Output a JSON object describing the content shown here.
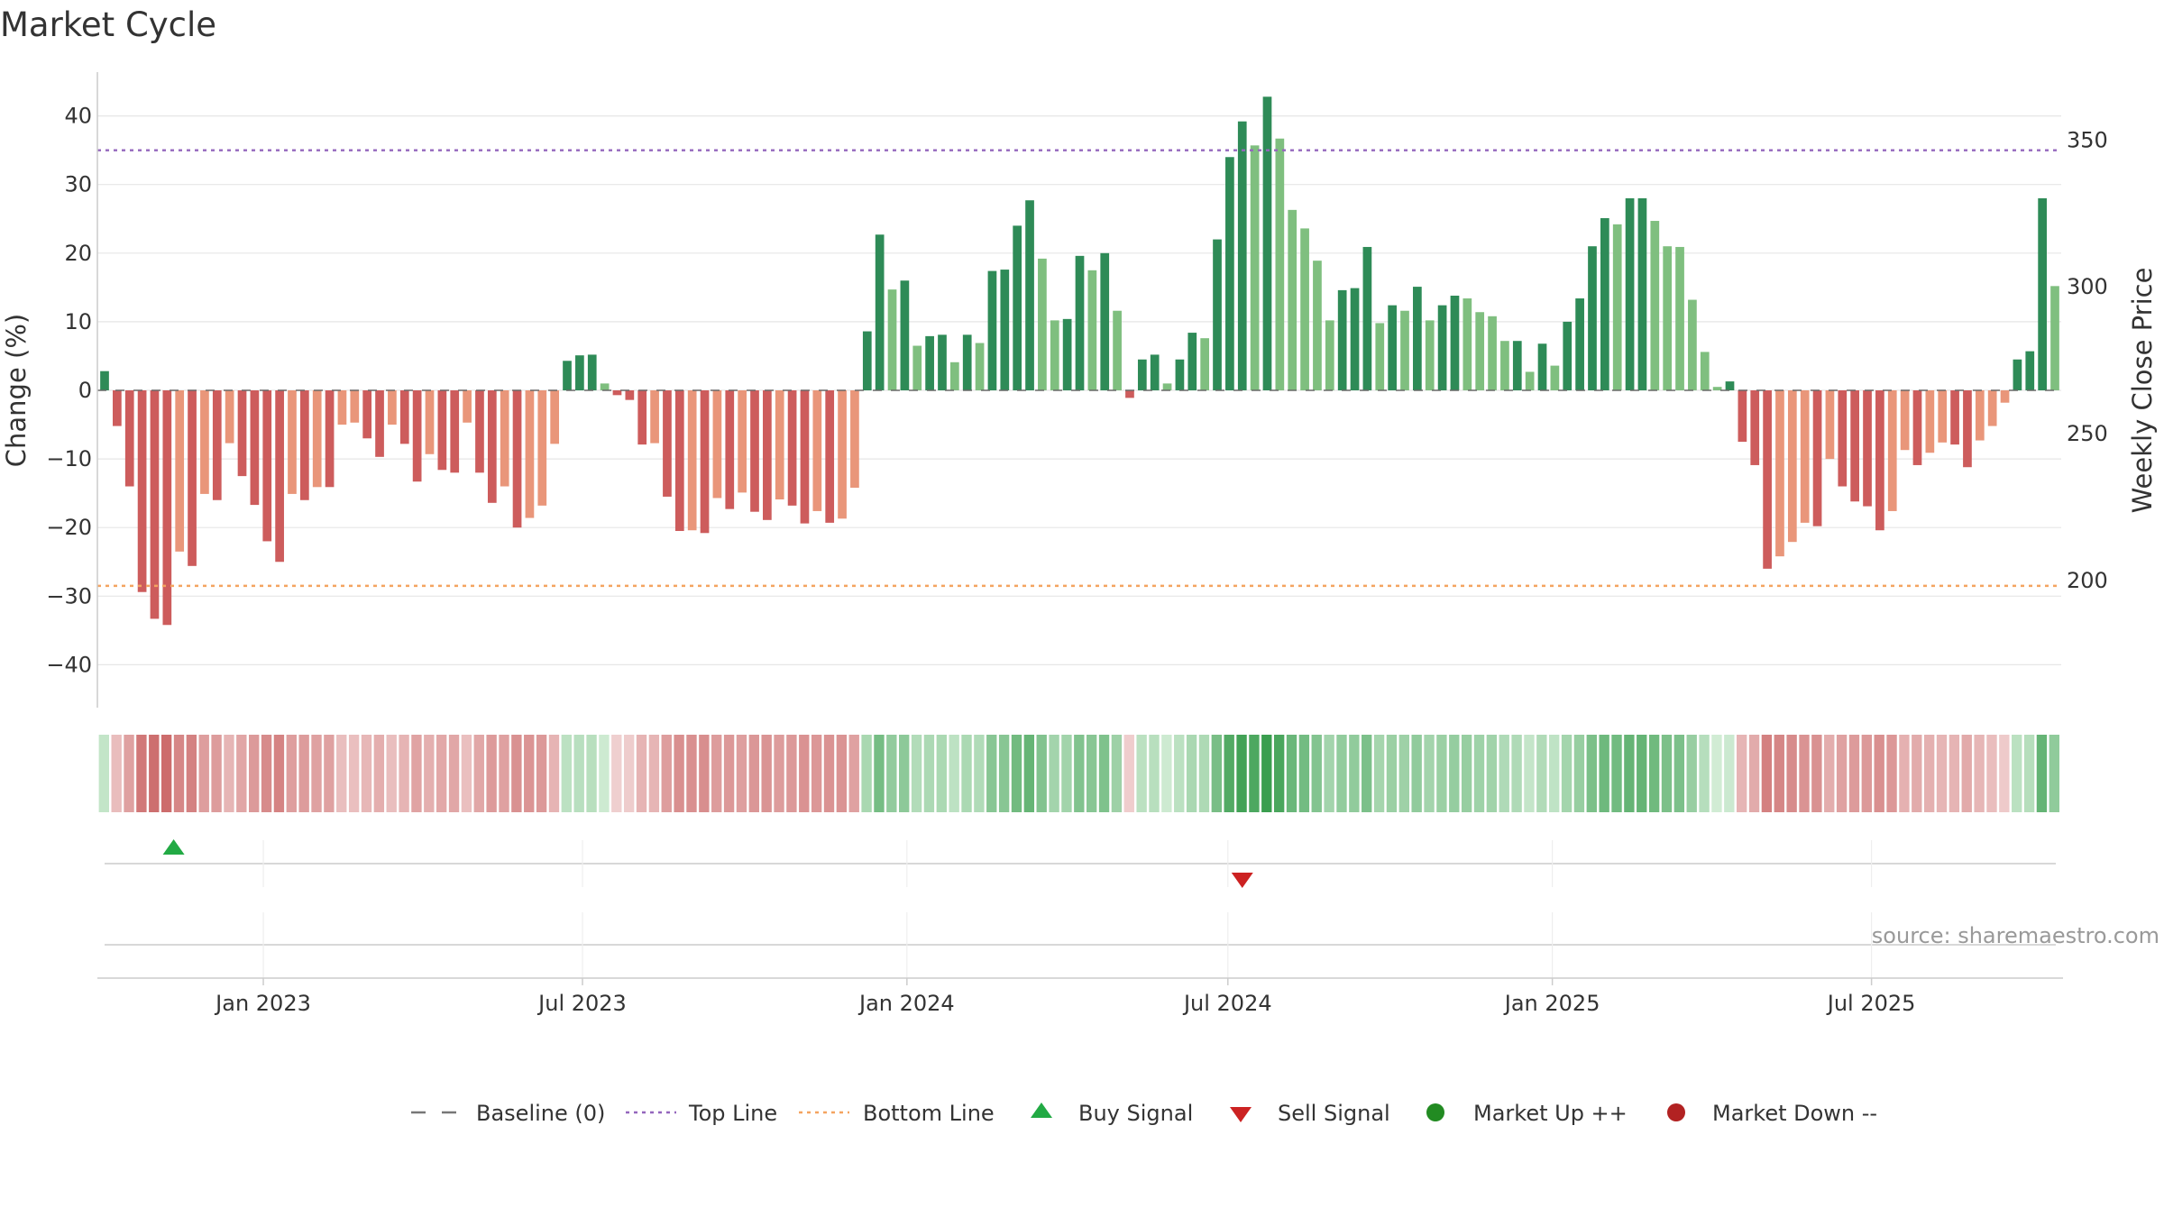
{
  "chart_data": {
    "type": "bar",
    "title": "Market Cycle",
    "ylabel": "Change (%)",
    "y2label": "Weekly Close Price",
    "ylim": [
      -46,
      46
    ],
    "y_ticks": [
      -40,
      -30,
      -20,
      -10,
      0,
      10,
      20,
      30,
      40
    ],
    "y_tick_labels": [
      "−40",
      "−30",
      "−20",
      "−10",
      "0",
      "10",
      "20",
      "30",
      "40"
    ],
    "y2lim": [
      158.5,
      376
    ],
    "y2_ticks": [
      200,
      250,
      300,
      350
    ],
    "x_start": "2022-10-03",
    "x_end": "2025-10-13",
    "x_ticks": [
      {
        "date": "2023-01-01",
        "label": "Jan 2023"
      },
      {
        "date": "2023-07-01",
        "label": "Jul 2023"
      },
      {
        "date": "2024-01-01",
        "label": "Jan 2024"
      },
      {
        "date": "2024-07-01",
        "label": "Jul 2024"
      },
      {
        "date": "2025-01-01",
        "label": "Jan 2025"
      },
      {
        "date": "2025-07-01",
        "label": "Jul 2025"
      }
    ],
    "baseline": 0,
    "top_line": 35,
    "bottom_line": -28.5,
    "values": [
      2.8,
      -5.2,
      -14,
      -29.4,
      -33.3,
      -34.2,
      -23.5,
      -25.6,
      -15.1,
      -16,
      -7.7,
      -12.5,
      -16.7,
      -22,
      -25,
      -15.1,
      -16,
      -14.1,
      -14.1,
      -5,
      -4.7,
      -7,
      -9.7,
      -5,
      -7.8,
      -13.3,
      -9.3,
      -11.6,
      -12,
      -4.7,
      -12,
      -16.4,
      -14,
      -20,
      -18.6,
      -16.8,
      -7.8,
      4.3,
      5.1,
      5.2,
      1,
      -0.7,
      -1.4,
      -7.9,
      -7.7,
      -15.5,
      -20.5,
      -20.4,
      -20.8,
      -15.7,
      -17.3,
      -14.9,
      -17.7,
      -18.9,
      -15.9,
      -16.8,
      -19.4,
      -17.6,
      -19.3,
      -18.7,
      -14.2,
      8.6,
      22.7,
      14.7,
      16,
      6.5,
      7.9,
      8.1,
      4.1,
      8.1,
      6.9,
      17.4,
      17.6,
      24,
      27.7,
      19.2,
      10.2,
      10.4,
      19.6,
      17.5,
      20,
      11.6,
      -1.1,
      4.5,
      5.2,
      1,
      4.5,
      8.4,
      7.6,
      22,
      34,
      39.2,
      35.7,
      42.8,
      36.7,
      26.3,
      23.6,
      18.9,
      10.2,
      14.6,
      14.9,
      20.9,
      9.8,
      12.4,
      11.6,
      15.1,
      10.2,
      12.4,
      13.8,
      13.4,
      11.4,
      10.8,
      7.2,
      7.2,
      2.7,
      6.8,
      3.6,
      10,
      13.4,
      21,
      25.1,
      24.2,
      28,
      28,
      24.7,
      21,
      20.9,
      13.2,
      5.6,
      0.5,
      1.3,
      -7.5,
      -10.9,
      -26,
      -24.2,
      -22.1,
      -19.3,
      -19.8,
      -10,
      -14,
      -16.2,
      -16.9,
      -20.4,
      -17.6,
      -8.7,
      -10.9,
      -9.1,
      -7.6,
      -7.9,
      -11.2,
      -7.3,
      -5.2,
      -1.8,
      4.5,
      5.7,
      28,
      15.2
    ],
    "signals": [
      {
        "type": "buy",
        "index": 3
      },
      {
        "type": "sell",
        "index": 91
      }
    ],
    "colors": {
      "up_strong": "#2e8b57",
      "up_weak": "#7fbf7f",
      "down_strong": "#cd5c5c",
      "down_weak": "#e9967a",
      "top_line": "#9467bd",
      "bottom_line": "#f4a460",
      "buy": "#22aa44",
      "sell": "#cc2222",
      "market_up": "#228b22",
      "market_down": "#b22222"
    },
    "source": "source: sharemaestro.com",
    "legend": {
      "position": "bottom",
      "items": [
        {
          "key": "baseline",
          "label": "Baseline (0)"
        },
        {
          "key": "top",
          "label": "Top Line"
        },
        {
          "key": "bottom",
          "label": "Bottom Line"
        },
        {
          "key": "buy",
          "label": "Buy Signal"
        },
        {
          "key": "sell",
          "label": "Sell Signal"
        },
        {
          "key": "mup",
          "label": "Market Up ++"
        },
        {
          "key": "mdown",
          "label": "Market Down --"
        }
      ]
    }
  }
}
